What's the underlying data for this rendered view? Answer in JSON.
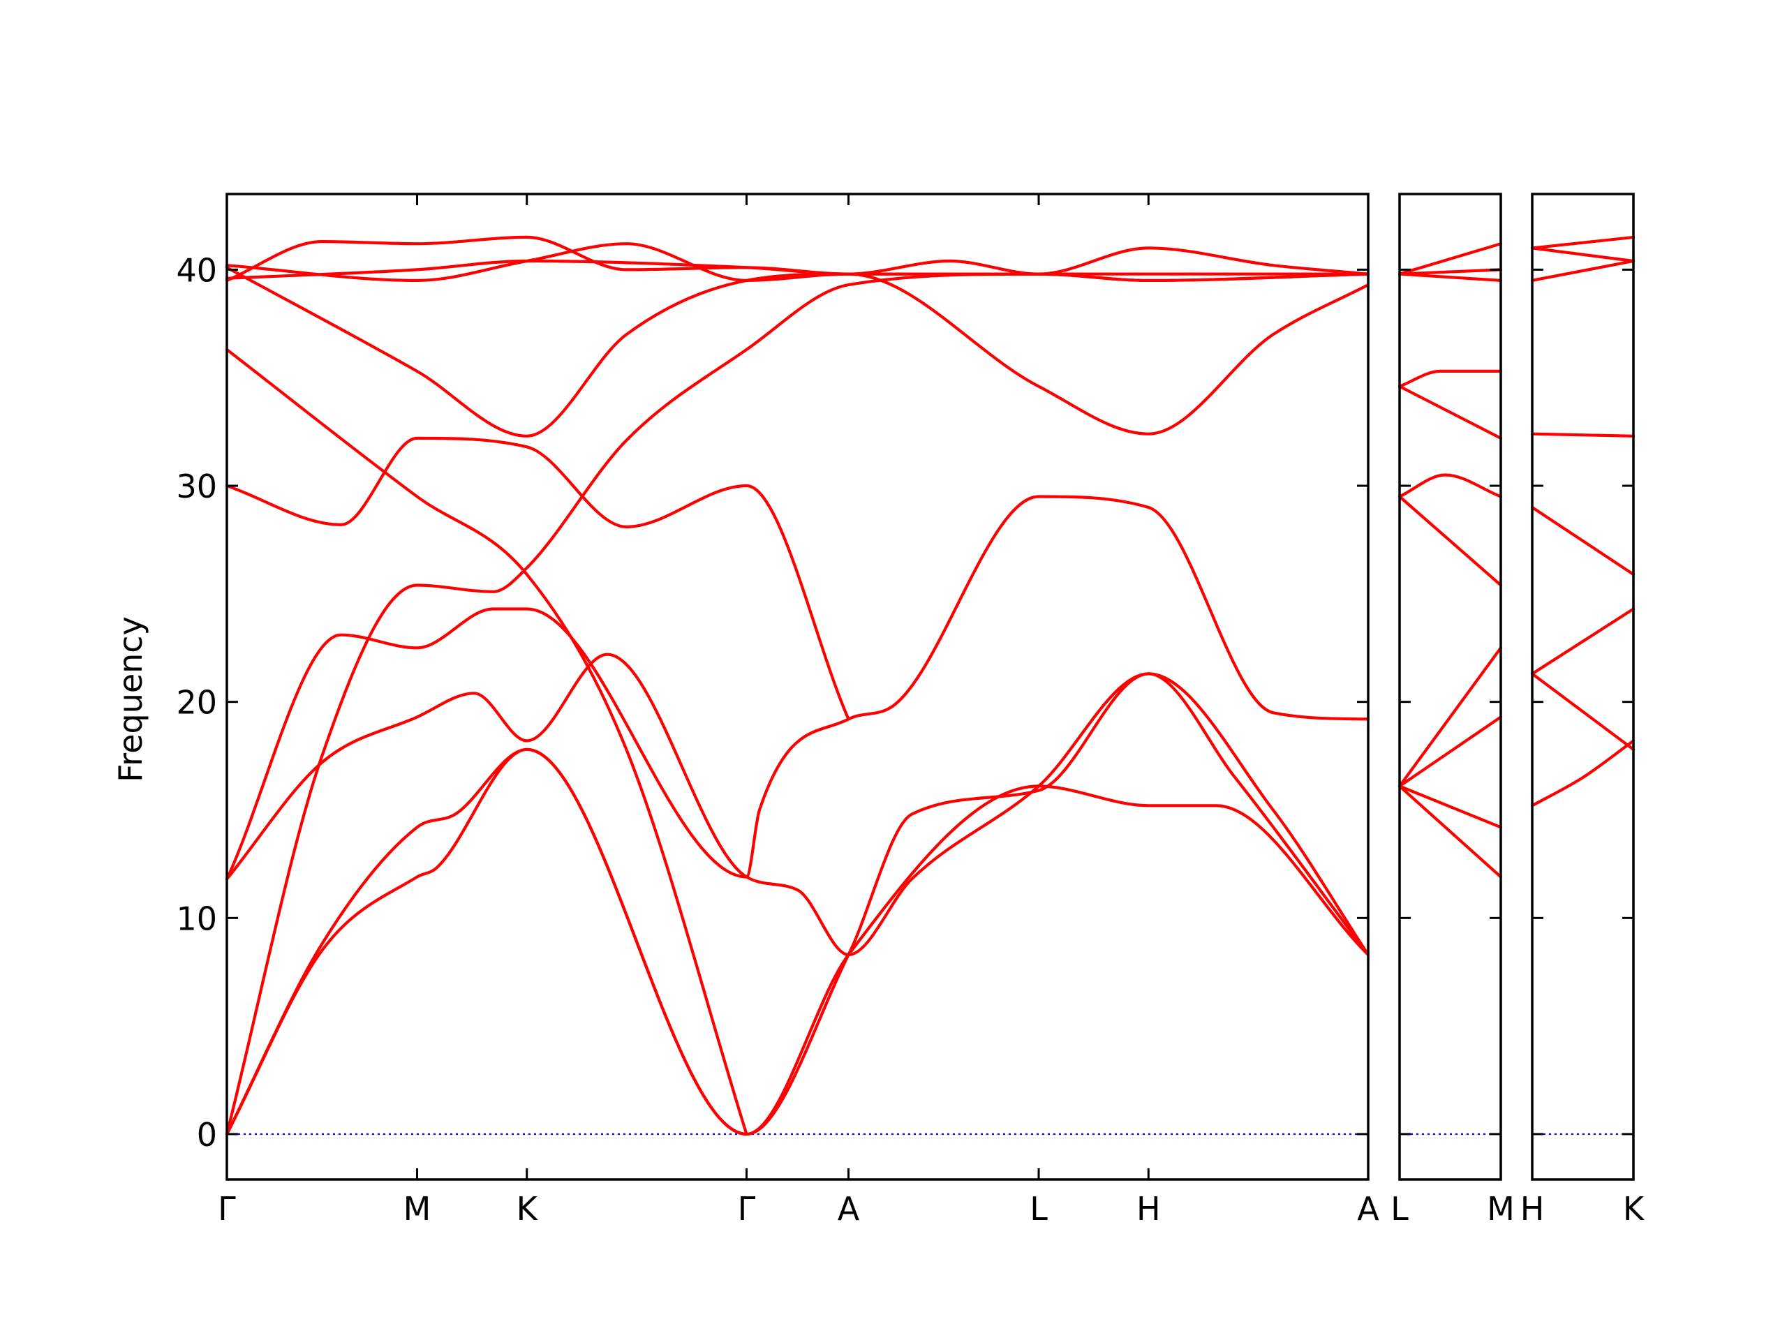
{
  "chart_data": {
    "type": "line",
    "title": "",
    "xlabel": "",
    "ylabel": "Frequency",
    "ylim": [
      -2.1,
      43.5
    ],
    "y_ticks": [
      0,
      10,
      20,
      30,
      40
    ],
    "grid": false,
    "colors": {
      "bands": "#ff0000",
      "zero_line": "#0000ff",
      "axes": "#000000"
    },
    "panels": [
      {
        "x_labels": [
          "Γ",
          "M",
          "K",
          "Γ",
          "A",
          "L",
          "H",
          "A"
        ],
        "x_positions": [
          0,
          1,
          1.577,
          2.732,
          3.268,
          4.268,
          4.845,
          6.0
        ],
        "series": [
          {
            "values": [
              [
                0,
                0
              ],
              [
                0.5,
                8.5
              ],
              [
                1,
                11.9
              ],
              [
                1.1,
                12.3
              ],
              [
                1.577,
                17.8
              ],
              [
                2.732,
                0
              ],
              [
                3.268,
                8.3
              ],
              [
                4.268,
                16.1
              ],
              [
                4.845,
                15.2
              ],
              [
                5.2,
                15.2
              ],
              [
                6.0,
                8.3
              ]
            ]
          },
          {
            "values": [
              [
                0,
                0
              ],
              [
                0.5,
                8.8
              ],
              [
                1,
                14.2
              ],
              [
                1.2,
                14.8
              ],
              [
                1.577,
                17.8
              ],
              [
                2.732,
                0
              ],
              [
                3.268,
                8.3
              ],
              [
                3.6,
                14.8
              ],
              [
                4.268,
                15.9
              ],
              [
                4.845,
                21.3
              ],
              [
                5.3,
                16.5
              ],
              [
                6.0,
                8.3
              ]
            ]
          },
          {
            "values": [
              [
                0,
                0
              ],
              [
                0.5,
                17.5
              ],
              [
                1,
                25.4
              ],
              [
                1.4,
                25.1
              ],
              [
                1.577,
                26.2
              ],
              [
                2.1,
                32.1
              ],
              [
                2.732,
                36.3
              ],
              [
                3.268,
                39.3
              ],
              [
                4.268,
                39.8
              ],
              [
                4.845,
                39.5
              ],
              [
                6.0,
                39.8
              ]
            ]
          },
          {
            "values": [
              [
                0,
                11.8
              ],
              [
                0.5,
                17.2
              ],
              [
                1,
                19.3
              ],
              [
                1.3,
                20.4
              ],
              [
                1.577,
                18.2
              ],
              [
                2.0,
                22.2
              ],
              [
                2.732,
                11.9
              ],
              [
                3.0,
                11.3
              ],
              [
                3.268,
                8.3
              ],
              [
                3.6,
                11.8
              ],
              [
                4.268,
                16.1
              ],
              [
                4.845,
                21.3
              ],
              [
                5.5,
                15.0
              ],
              [
                6.0,
                8.3
              ]
            ]
          },
          {
            "values": [
              [
                0,
                11.8
              ],
              [
                0.6,
                23.1
              ],
              [
                1,
                22.5
              ],
              [
                1.4,
                24.3
              ],
              [
                1.577,
                24.3
              ],
              [
                2.732,
                11.9
              ],
              [
                2.8,
                15.0
              ],
              [
                3.268,
                19.2
              ],
              [
                3.5,
                19.8
              ],
              [
                4.268,
                29.5
              ],
              [
                4.845,
                29.0
              ],
              [
                5.5,
                19.5
              ],
              [
                6.0,
                19.2
              ]
            ]
          },
          {
            "values": [
              [
                0,
                30.0
              ],
              [
                0.6,
                28.2
              ],
              [
                1,
                32.2
              ],
              [
                1.577,
                31.8
              ],
              [
                2.1,
                28.1
              ],
              [
                2.732,
                30.0
              ],
              [
                3.268,
                19.2
              ]
            ]
          },
          {
            "values": [
              [
                0,
                36.3
              ],
              [
                1,
                29.5
              ],
              [
                1.577,
                25.9
              ],
              [
                2.1,
                17.8
              ],
              [
                2.732,
                0
              ]
            ]
          },
          {
            "values": [
              [
                0,
                40.1
              ],
              [
                1,
                35.3
              ],
              [
                1.577,
                32.3
              ],
              [
                2.1,
                37.0
              ],
              [
                2.732,
                39.5
              ],
              [
                3.268,
                39.8
              ],
              [
                4.268,
                34.6
              ],
              [
                4.845,
                32.4
              ],
              [
                5.5,
                37.0
              ],
              [
                6.0,
                39.3
              ]
            ]
          },
          {
            "values": [
              [
                0,
                39.5
              ],
              [
                0.5,
                41.3
              ],
              [
                1,
                41.2
              ],
              [
                1.577,
                41.5
              ],
              [
                2.1,
                40.0
              ],
              [
                2.732,
                40.1
              ],
              [
                3.268,
                39.8
              ],
              [
                4.268,
                39.8
              ],
              [
                4.845,
                41.0
              ],
              [
                5.5,
                40.2
              ],
              [
                6.0,
                39.8
              ]
            ]
          },
          {
            "values": [
              [
                0,
                40.2
              ],
              [
                1,
                39.5
              ],
              [
                1.577,
                40.4
              ],
              [
                2.1,
                41.2
              ],
              [
                2.732,
                39.5
              ],
              [
                3.268,
                39.8
              ],
              [
                4.268,
                39.8
              ],
              [
                4.845,
                39.5
              ],
              [
                6.0,
                39.8
              ]
            ]
          },
          {
            "values": [
              [
                0,
                39.6
              ],
              [
                1,
                40.0
              ],
              [
                1.577,
                40.4
              ],
              [
                2.732,
                40.1
              ],
              [
                3.268,
                39.8
              ],
              [
                3.8,
                40.4
              ],
              [
                4.268,
                39.8
              ],
              [
                6.0,
                39.8
              ]
            ]
          }
        ]
      },
      {
        "x_labels": [
          "L",
          "M"
        ],
        "x_positions": [
          0,
          1
        ],
        "series": [
          {
            "values": [
              [
                0,
                16.1
              ],
              [
                1,
                11.9
              ]
            ]
          },
          {
            "values": [
              [
                0,
                16.1
              ],
              [
                1,
                14.2
              ]
            ]
          },
          {
            "values": [
              [
                0,
                16.1
              ],
              [
                1,
                19.3
              ]
            ]
          },
          {
            "values": [
              [
                0,
                16.1
              ],
              [
                1,
                22.5
              ]
            ]
          },
          {
            "values": [
              [
                0,
                29.5
              ],
              [
                1,
                25.4
              ]
            ]
          },
          {
            "values": [
              [
                0,
                29.5
              ],
              [
                0.45,
                30.5
              ],
              [
                1,
                29.5
              ]
            ]
          },
          {
            "values": [
              [
                0,
                34.6
              ],
              [
                1,
                32.2
              ]
            ]
          },
          {
            "values": [
              [
                0,
                34.6
              ],
              [
                0.4,
                35.3
              ],
              [
                1,
                35.3
              ]
            ]
          },
          {
            "values": [
              [
                0,
                39.8
              ],
              [
                1,
                39.5
              ]
            ]
          },
          {
            "values": [
              [
                0,
                39.8
              ],
              [
                1,
                40.0
              ]
            ]
          },
          {
            "values": [
              [
                0,
                39.8
              ],
              [
                1,
                41.2
              ]
            ]
          }
        ]
      },
      {
        "x_labels": [
          "H",
          "K"
        ],
        "x_positions": [
          0,
          1
        ],
        "series": [
          {
            "values": [
              [
                0,
                15.2
              ],
              [
                0.5,
                16.5
              ],
              [
                1,
                18.2
              ]
            ]
          },
          {
            "values": [
              [
                0,
                21.3
              ],
              [
                1,
                17.8
              ]
            ]
          },
          {
            "values": [
              [
                0,
                21.3
              ],
              [
                1,
                24.3
              ]
            ]
          },
          {
            "values": [
              [
                0,
                29.0
              ],
              [
                1,
                25.9
              ]
            ]
          },
          {
            "values": [
              [
                0,
                32.4
              ],
              [
                1,
                32.3
              ]
            ]
          },
          {
            "values": [
              [
                0,
                39.5
              ],
              [
                1,
                40.4
              ]
            ]
          },
          {
            "values": [
              [
                0,
                41.0
              ],
              [
                1,
                40.4
              ]
            ]
          },
          {
            "values": [
              [
                0,
                41.0
              ],
              [
                1,
                41.5
              ]
            ]
          }
        ]
      }
    ]
  }
}
